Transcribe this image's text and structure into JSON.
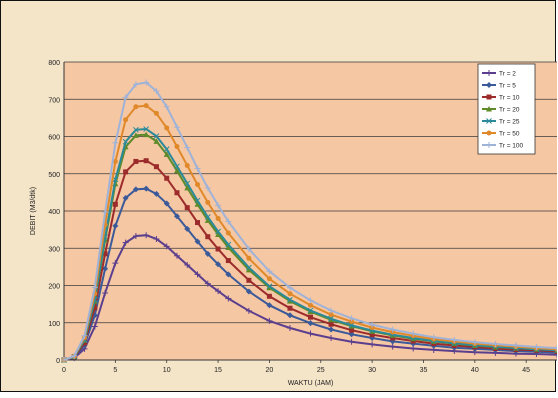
{
  "colors": {
    "chart_bg": "#f4e4c8",
    "plot_bg": "#f6c7a3",
    "grid": "#3a3a3a",
    "axis_text": "#222222"
  },
  "chart_data": {
    "type": "line",
    "title": "",
    "xlabel": "WAKTU (JAM)",
    "ylabel": "DEBIT (M3/dtk)",
    "xlim": [
      0,
      48
    ],
    "ylim": [
      0,
      800
    ],
    "x_ticks": [
      0,
      5,
      10,
      15,
      20,
      25,
      30,
      35,
      40,
      45
    ],
    "y_ticks": [
      0,
      100,
      200,
      300,
      400,
      500,
      600,
      700,
      800
    ],
    "grid": "horizontal",
    "legend_position": "top-right",
    "x": [
      0,
      1,
      2,
      3,
      4,
      5,
      6,
      7,
      8,
      9,
      10,
      11,
      12,
      13,
      14,
      15,
      16,
      18,
      20,
      22,
      24,
      26,
      28,
      30,
      32,
      34,
      36,
      38,
      40,
      42,
      44,
      46,
      48
    ],
    "series": [
      {
        "name": "Tr = 2",
        "color": "#5b3f8e",
        "marker": "plus",
        "values": [
          0,
          5,
          30,
          90,
          180,
          260,
          315,
          333,
          335,
          325,
          305,
          280,
          255,
          230,
          205,
          185,
          165,
          132,
          105,
          86,
          71,
          59,
          49,
          42,
          36,
          31,
          27,
          24,
          21,
          19,
          17,
          16,
          14
        ]
      },
      {
        "name": "Tr = 5",
        "color": "#3b5a9a",
        "marker": "diamond",
        "values": [
          0,
          7,
          40,
          120,
          245,
          360,
          435,
          458,
          460,
          446,
          420,
          386,
          352,
          318,
          285,
          257,
          230,
          184,
          147,
          120,
          99,
          82,
          69,
          59,
          50,
          44,
          38,
          33,
          30,
          27,
          24,
          22,
          20
        ]
      },
      {
        "name": "Tr = 10",
        "color": "#9c2b2b",
        "marker": "square",
        "values": [
          0,
          8,
          46,
          140,
          285,
          418,
          505,
          533,
          535,
          519,
          488,
          449,
          409,
          369,
          331,
          298,
          267,
          214,
          171,
          139,
          115,
          96,
          80,
          68,
          59,
          51,
          44,
          39,
          35,
          31,
          28,
          26,
          23
        ]
      },
      {
        "name": "Tr = 20",
        "color": "#5f8a2a",
        "marker": "triangle",
        "values": [
          0,
          9,
          53,
          158,
          322,
          473,
          572,
          603,
          605,
          587,
          552,
          508,
          462,
          418,
          375,
          337,
          302,
          242,
          194,
          158,
          130,
          108,
          91,
          77,
          66,
          57,
          50,
          44,
          39,
          35,
          32,
          29,
          26
        ]
      },
      {
        "name": "Tr = 25",
        "color": "#2a8a9a",
        "marker": "x",
        "values": [
          0,
          9,
          54,
          162,
          330,
          485,
          586,
          618,
          620,
          601,
          566,
          520,
          474,
          428,
          384,
          345,
          310,
          248,
          198,
          162,
          133,
          111,
          93,
          79,
          68,
          59,
          51,
          45,
          40,
          36,
          32,
          29,
          26
        ]
      },
      {
        "name": "Tr = 50",
        "color": "#e0892a",
        "marker": "circle",
        "values": [
          0,
          10,
          60,
          178,
          363,
          533,
          645,
          680,
          683,
          662,
          623,
          573,
          522,
          471,
          423,
          380,
          341,
          273,
          218,
          178,
          147,
          122,
          103,
          87,
          75,
          65,
          56,
          50,
          44,
          40,
          36,
          32,
          29
        ]
      },
      {
        "name": "Tr = 100",
        "color": "#9fb3d8",
        "marker": "plus",
        "values": [
          0,
          11,
          65,
          195,
          397,
          583,
          705,
          740,
          745,
          722,
          680,
          625,
          570,
          514,
          462,
          415,
          372,
          298,
          238,
          194,
          160,
          133,
          112,
          95,
          82,
          71,
          61,
          54,
          48,
          43,
          39,
          35,
          32
        ]
      }
    ]
  }
}
